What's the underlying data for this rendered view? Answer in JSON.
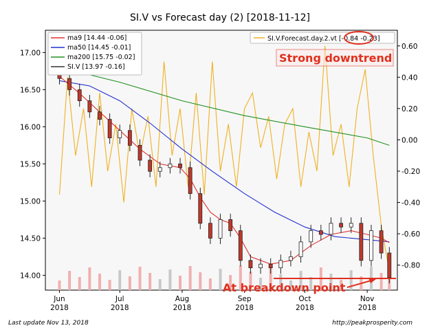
{
  "chart_data": {
    "type": "candlestick",
    "title": "SI.V vs Forecast day (2)  [2018-11-12]",
    "xlabel": "",
    "ylabel": "",
    "x_ticks": [
      {
        "label": "Jun\n2018",
        "date": "2018-06-01"
      },
      {
        "label": "Jul\n2018",
        "date": "2018-07-01"
      },
      {
        "label": "Aug\n2018",
        "date": "2018-08-01"
      },
      {
        "label": "Sep\n2018",
        "date": "2018-09-01"
      },
      {
        "label": "Oct\n2018",
        "date": "2018-10-01"
      },
      {
        "label": "Nov\n2018",
        "date": "2018-11-01"
      }
    ],
    "xlim": [
      "2018-05-25",
      "2018-11-16"
    ],
    "y_left": {
      "ticks": [
        "14.00",
        "14.50",
        "15.00",
        "15.50",
        "16.00",
        "16.50",
        "17.00"
      ],
      "lim": [
        13.8,
        17.3
      ]
    },
    "y_right": {
      "ticks": [
        "-0.80",
        "-0.60",
        "-0.40",
        "-0.20",
        "0.00",
        "0.20",
        "0.40",
        "0.60"
      ],
      "lim": [
        -0.96,
        0.7
      ]
    },
    "legend_left": [
      {
        "label": "ma9 [14.44 -0.06]",
        "color": "#e03030"
      },
      {
        "label": "ma50 [14.45 -0.01]",
        "color": "#2030d0"
      },
      {
        "label": "ma200 [15.75 -0.02]",
        "color": "#209020"
      },
      {
        "label": "SI.V [13.97 -0.16]",
        "color": "#333333"
      }
    ],
    "legend_left_position": "top-left",
    "legend_right": {
      "label": "SI.V.Forecast.day.2.vt [-0.84 -0.23]",
      "color": "#f0b020"
    },
    "legend_right_position": "top-right",
    "grid": false,
    "series": [
      {
        "name": "SI.V",
        "type": "candlestick",
        "color": "#333333",
        "points": [
          {
            "date": "2018-06-01",
            "close": 16.65
          },
          {
            "date": "2018-06-06",
            "close": 16.5
          },
          {
            "date": "2018-06-11",
            "close": 16.35
          },
          {
            "date": "2018-06-16",
            "close": 16.2
          },
          {
            "date": "2018-06-21",
            "close": 16.1
          },
          {
            "date": "2018-06-26",
            "close": 15.85
          },
          {
            "date": "2018-07-01",
            "close": 15.95
          },
          {
            "date": "2018-07-06",
            "close": 15.75
          },
          {
            "date": "2018-07-11",
            "close": 15.55
          },
          {
            "date": "2018-07-16",
            "close": 15.4
          },
          {
            "date": "2018-07-21",
            "close": 15.45
          },
          {
            "date": "2018-07-26",
            "close": 15.5
          },
          {
            "date": "2018-07-31",
            "close": 15.45
          },
          {
            "date": "2018-08-05",
            "close": 15.1
          },
          {
            "date": "2018-08-10",
            "close": 14.7
          },
          {
            "date": "2018-08-15",
            "close": 14.5
          },
          {
            "date": "2018-08-20",
            "close": 14.75
          },
          {
            "date": "2018-08-25",
            "close": 14.6
          },
          {
            "date": "2018-08-30",
            "close": 14.2
          },
          {
            "date": "2018-09-04",
            "close": 14.1
          },
          {
            "date": "2018-09-09",
            "close": 14.15
          },
          {
            "date": "2018-09-14",
            "close": 14.1
          },
          {
            "date": "2018-09-19",
            "close": 14.2
          },
          {
            "date": "2018-09-24",
            "close": 14.25
          },
          {
            "date": "2018-09-29",
            "close": 14.45
          },
          {
            "date": "2018-10-04",
            "close": 14.6
          },
          {
            "date": "2018-10-09",
            "close": 14.55
          },
          {
            "date": "2018-10-14",
            "close": 14.7
          },
          {
            "date": "2018-10-19",
            "close": 14.65
          },
          {
            "date": "2018-10-24",
            "close": 14.7
          },
          {
            "date": "2018-10-29",
            "close": 14.2
          },
          {
            "date": "2018-11-03",
            "close": 14.6
          },
          {
            "date": "2018-11-08",
            "close": 14.3
          },
          {
            "date": "2018-11-12",
            "close": 13.97
          }
        ]
      },
      {
        "name": "ma9",
        "type": "line",
        "color": "#e03030",
        "points": [
          {
            "date": "2018-06-01",
            "value": 16.68
          },
          {
            "date": "2018-06-11",
            "value": 16.45
          },
          {
            "date": "2018-06-21",
            "value": 16.2
          },
          {
            "date": "2018-07-01",
            "value": 15.95
          },
          {
            "date": "2018-07-11",
            "value": 15.7
          },
          {
            "date": "2018-07-21",
            "value": 15.5
          },
          {
            "date": "2018-07-31",
            "value": 15.45
          },
          {
            "date": "2018-08-05",
            "value": 15.3
          },
          {
            "date": "2018-08-10",
            "value": 15.05
          },
          {
            "date": "2018-08-15",
            "value": 14.85
          },
          {
            "date": "2018-08-20",
            "value": 14.75
          },
          {
            "date": "2018-08-25",
            "value": 14.7
          },
          {
            "date": "2018-08-30",
            "value": 14.5
          },
          {
            "date": "2018-09-04",
            "value": 14.25
          },
          {
            "date": "2018-09-14",
            "value": 14.15
          },
          {
            "date": "2018-09-24",
            "value": 14.2
          },
          {
            "date": "2018-10-04",
            "value": 14.4
          },
          {
            "date": "2018-10-14",
            "value": 14.55
          },
          {
            "date": "2018-10-24",
            "value": 14.6
          },
          {
            "date": "2018-11-01",
            "value": 14.55
          },
          {
            "date": "2018-11-08",
            "value": 14.5
          },
          {
            "date": "2018-11-12",
            "value": 14.44
          }
        ]
      },
      {
        "name": "ma50",
        "type": "line",
        "color": "#2030d0",
        "points": [
          {
            "date": "2018-06-01",
            "value": 16.62
          },
          {
            "date": "2018-06-16",
            "value": 16.55
          },
          {
            "date": "2018-07-01",
            "value": 16.35
          },
          {
            "date": "2018-07-16",
            "value": 16.05
          },
          {
            "date": "2018-08-01",
            "value": 15.7
          },
          {
            "date": "2018-08-16",
            "value": 15.4
          },
          {
            "date": "2018-09-01",
            "value": 15.1
          },
          {
            "date": "2018-09-16",
            "value": 14.85
          },
          {
            "date": "2018-10-01",
            "value": 14.65
          },
          {
            "date": "2018-10-16",
            "value": 14.52
          },
          {
            "date": "2018-11-01",
            "value": 14.48
          },
          {
            "date": "2018-11-12",
            "value": 14.45
          }
        ]
      },
      {
        "name": "ma200",
        "type": "line",
        "color": "#209020",
        "points": [
          {
            "date": "2018-06-01",
            "value": 16.8
          },
          {
            "date": "2018-07-01",
            "value": 16.6
          },
          {
            "date": "2018-08-01",
            "value": 16.35
          },
          {
            "date": "2018-09-01",
            "value": 16.15
          },
          {
            "date": "2018-10-01",
            "value": 16.0
          },
          {
            "date": "2018-11-01",
            "value": 15.85
          },
          {
            "date": "2018-11-12",
            "value": 15.75
          }
        ]
      },
      {
        "name": "SI.V.Forecast.day.2.vt",
        "type": "line",
        "axis": "right",
        "color": "#f0b020",
        "points": [
          {
            "date": "2018-06-01",
            "value": -0.35
          },
          {
            "date": "2018-06-05",
            "value": 0.4
          },
          {
            "date": "2018-06-09",
            "value": -0.1
          },
          {
            "date": "2018-06-13",
            "value": 0.2
          },
          {
            "date": "2018-06-17",
            "value": -0.3
          },
          {
            "date": "2018-06-21",
            "value": 0.3
          },
          {
            "date": "2018-06-25",
            "value": -0.2
          },
          {
            "date": "2018-06-29",
            "value": 0.1
          },
          {
            "date": "2018-07-03",
            "value": -0.4
          },
          {
            "date": "2018-07-07",
            "value": 0.2
          },
          {
            "date": "2018-07-11",
            "value": -0.1
          },
          {
            "date": "2018-07-15",
            "value": 0.15
          },
          {
            "date": "2018-07-19",
            "value": -0.3
          },
          {
            "date": "2018-07-23",
            "value": 0.5
          },
          {
            "date": "2018-07-27",
            "value": -0.1
          },
          {
            "date": "2018-07-31",
            "value": 0.2
          },
          {
            "date": "2018-08-04",
            "value": -0.3
          },
          {
            "date": "2018-08-08",
            "value": 0.3
          },
          {
            "date": "2018-08-12",
            "value": -0.35
          },
          {
            "date": "2018-08-16",
            "value": 0.5
          },
          {
            "date": "2018-08-20",
            "value": -0.2
          },
          {
            "date": "2018-08-24",
            "value": 0.1
          },
          {
            "date": "2018-08-28",
            "value": -0.3
          },
          {
            "date": "2018-09-01",
            "value": 0.2
          },
          {
            "date": "2018-09-05",
            "value": 0.3
          },
          {
            "date": "2018-09-09",
            "value": -0.05
          },
          {
            "date": "2018-09-13",
            "value": 0.15
          },
          {
            "date": "2018-09-17",
            "value": -0.25
          },
          {
            "date": "2018-09-21",
            "value": 0.1
          },
          {
            "date": "2018-09-25",
            "value": 0.2
          },
          {
            "date": "2018-09-29",
            "value": -0.3
          },
          {
            "date": "2018-10-03",
            "value": 0.05
          },
          {
            "date": "2018-10-07",
            "value": -0.2
          },
          {
            "date": "2018-10-11",
            "value": 0.6
          },
          {
            "date": "2018-10-15",
            "value": -0.1
          },
          {
            "date": "2018-10-19",
            "value": 0.1
          },
          {
            "date": "2018-10-23",
            "value": -0.3
          },
          {
            "date": "2018-10-27",
            "value": 0.2
          },
          {
            "date": "2018-10-31",
            "value": 0.45
          },
          {
            "date": "2018-11-04",
            "value": -0.1
          },
          {
            "date": "2018-11-08",
            "value": -0.55
          },
          {
            "date": "2018-11-12",
            "value": -0.84
          }
        ]
      }
    ],
    "volume": {
      "color_up": "#c8c8c8",
      "color_down": "#f0b0b0"
    },
    "annotations": [
      {
        "text": "Strong downtrend",
        "color": "#e0301e"
      },
      {
        "text": "At breakdown point",
        "color": "#e0301e"
      }
    ]
  },
  "footer": {
    "left": "Last update Nov 13, 2018",
    "right": "http://peakprosperity.com"
  }
}
